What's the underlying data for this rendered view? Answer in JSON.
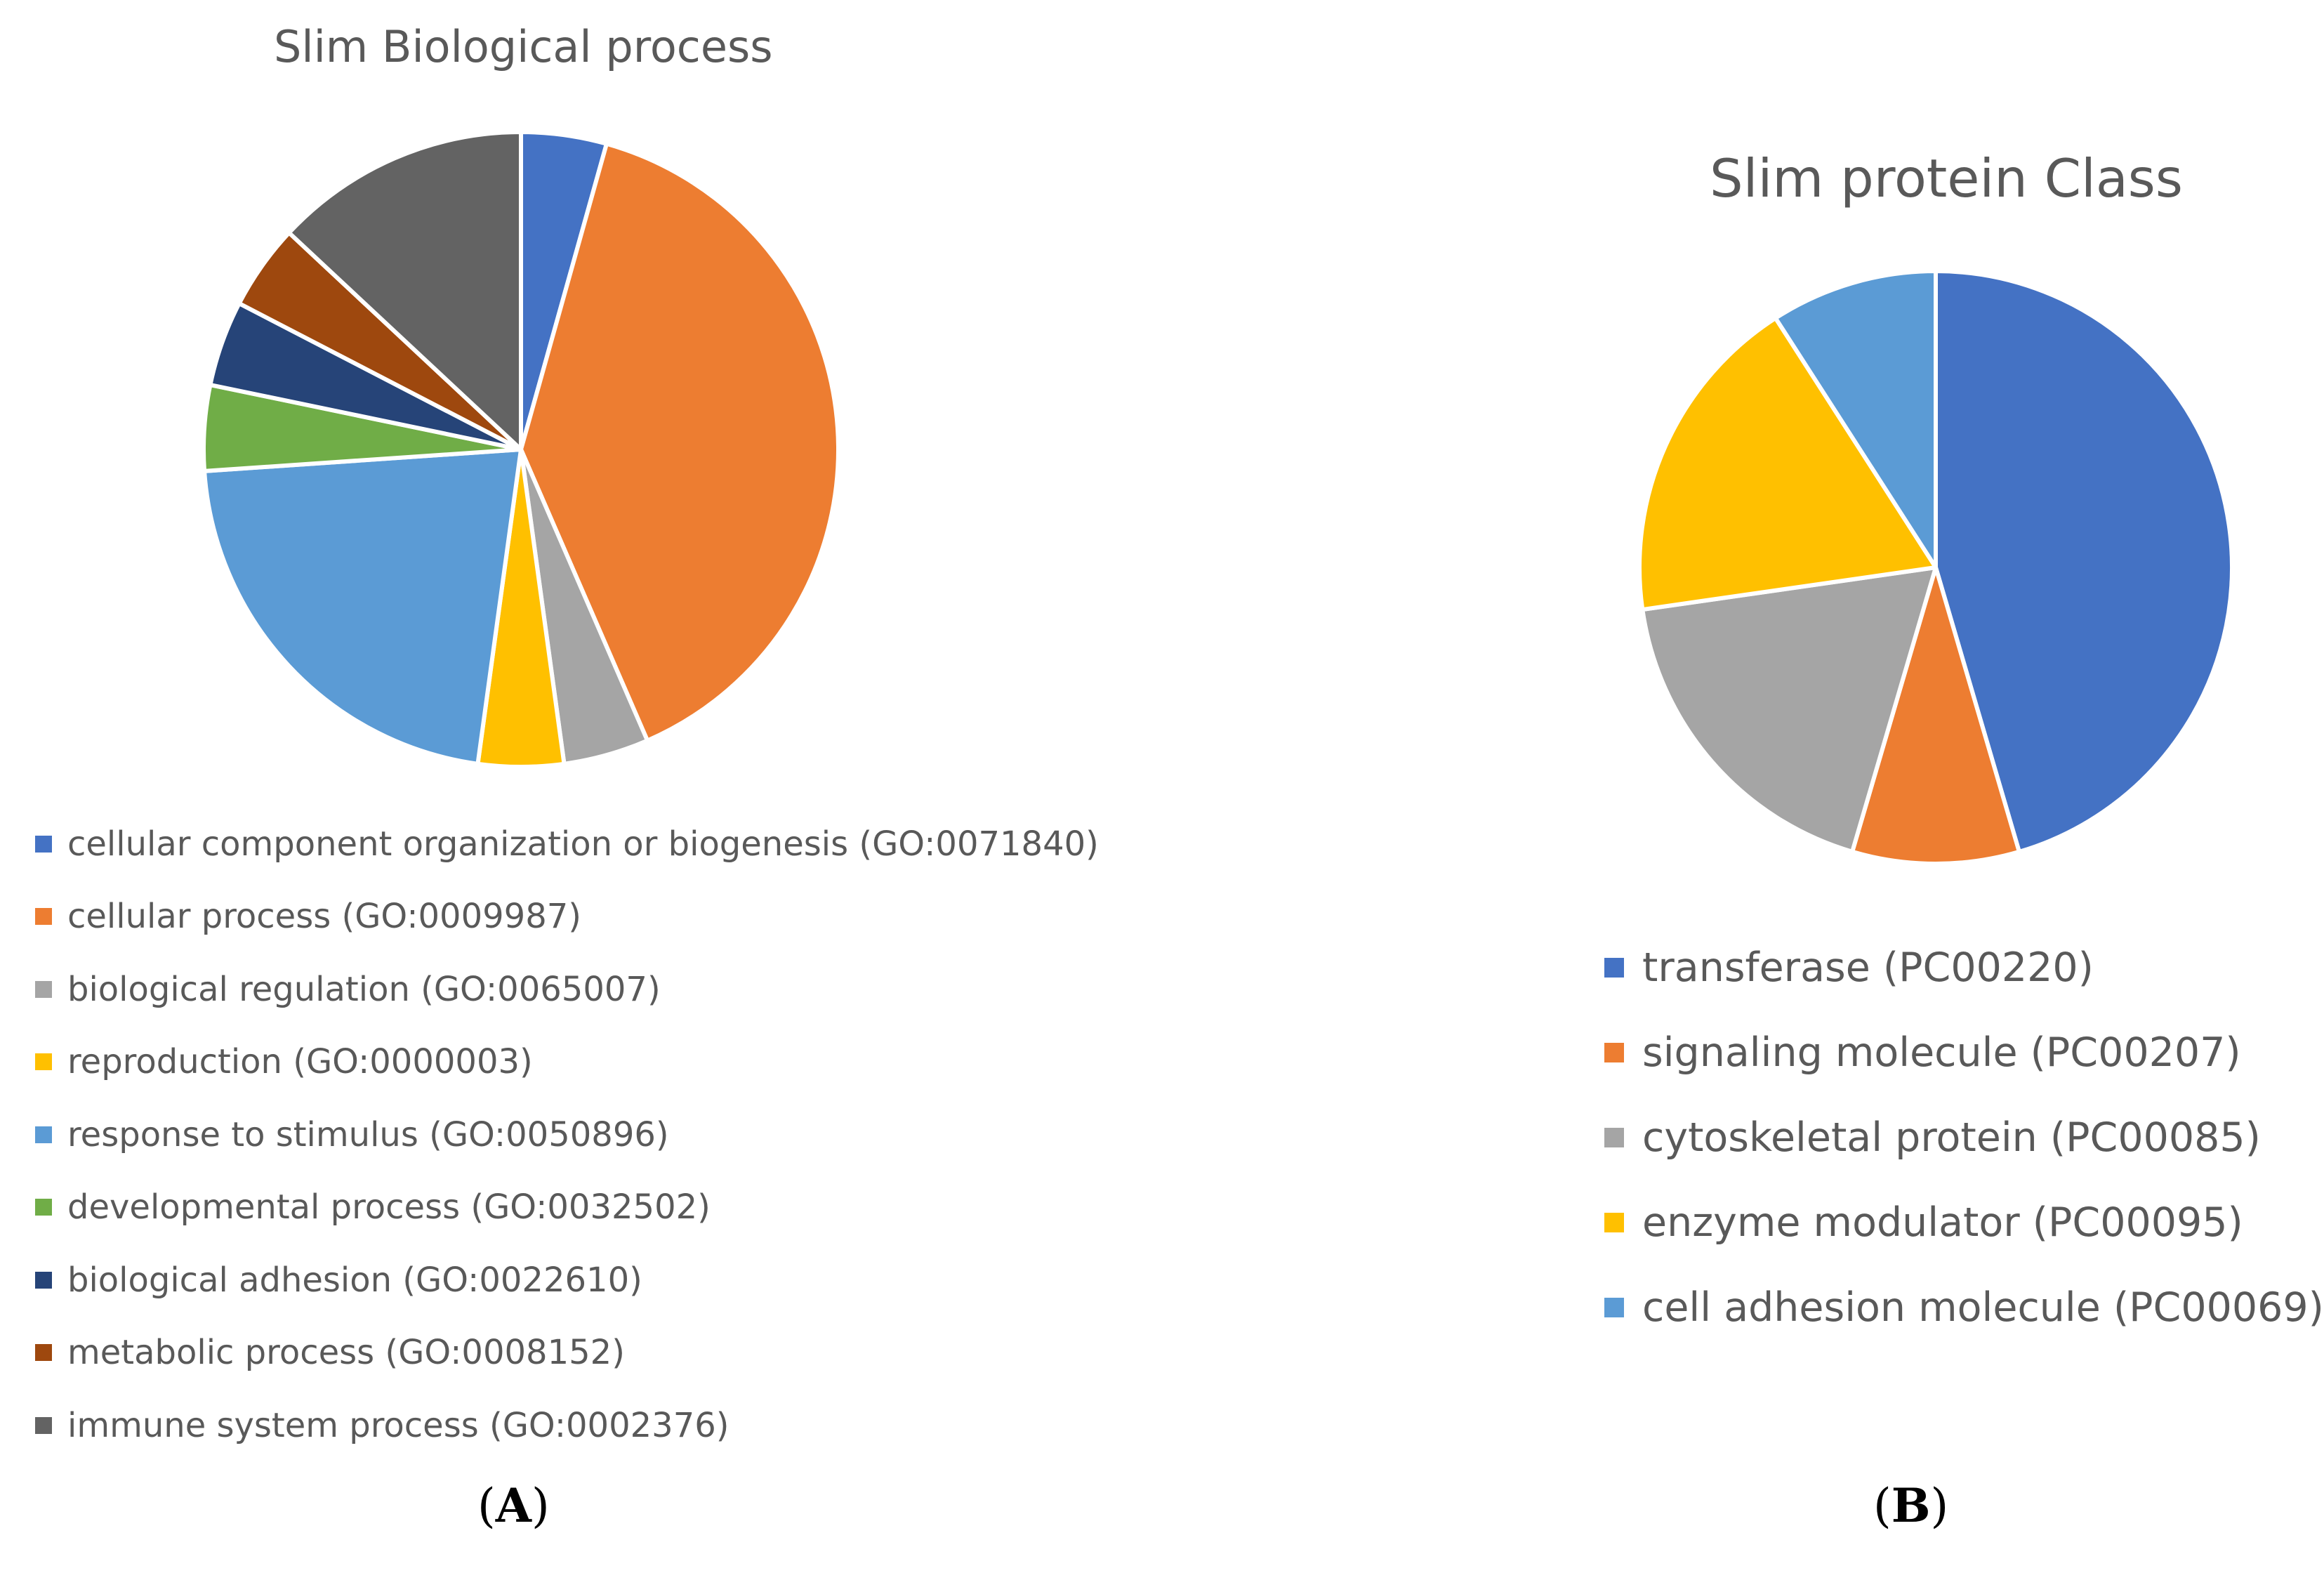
{
  "chart_data": [
    {
      "type": "pie",
      "title": "Slim Biological process",
      "panel_label": "A",
      "categories": [
        "cellular component organization or biogenesis (GO:0071840)",
        "cellular process (GO:0009987)",
        "biological regulation (GO:0065007)",
        "reproduction (GO:0000003)",
        "response to stimulus (GO:0050896)",
        "developmental process (GO:0032502)",
        "biological adhesion (GO:0022610)",
        "metabolic process (GO:0008152)",
        "immune system process (GO:0002376)"
      ],
      "values": [
        1,
        9,
        1,
        1,
        5,
        1,
        1,
        1,
        3
      ],
      "colors": [
        "#4472C4",
        "#ED7D31",
        "#A5A5A5",
        "#FFC000",
        "#5B9BD5",
        "#70AD47",
        "#264478",
        "#9E480E",
        "#636363"
      ],
      "legend_position": "bottom"
    },
    {
      "type": "pie",
      "title": "Slim protein Class",
      "panel_label": "B",
      "categories": [
        "transferase (PC00220)",
        "signaling molecule (PC00207)",
        "cytoskeletal protein (PC00085)",
        "enzyme modulator (PC00095)",
        "cell adhesion molecule (PC00069)"
      ],
      "values": [
        5,
        1,
        2,
        2,
        1
      ],
      "colors": [
        "#4472C4",
        "#ED7D31",
        "#A5A5A5",
        "#FFC000",
        "#5B9BD5"
      ],
      "legend_position": "bottom"
    }
  ]
}
